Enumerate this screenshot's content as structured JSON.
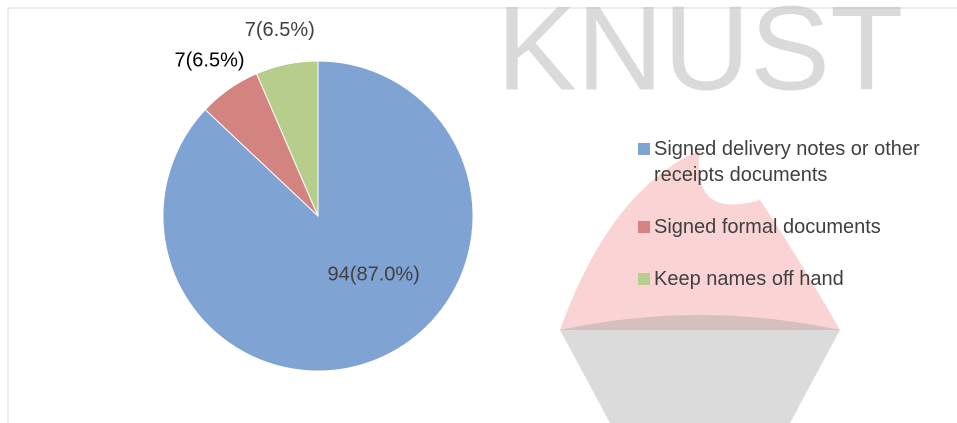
{
  "chart_data": {
    "type": "pie",
    "watermark": "KNUST",
    "categories": [
      "Signed delivery notes or other receipts documents",
      "Signed formal documents",
      "Keep names off hand"
    ],
    "values": [
      94,
      7,
      7
    ],
    "value_labels": [
      "94(87.0%)",
      "7(6.5%)",
      "7(6.5%)"
    ],
    "colors": [
      "#7fa3d3",
      "#d38481",
      "#b6cd8b"
    ],
    "legend": "right"
  }
}
